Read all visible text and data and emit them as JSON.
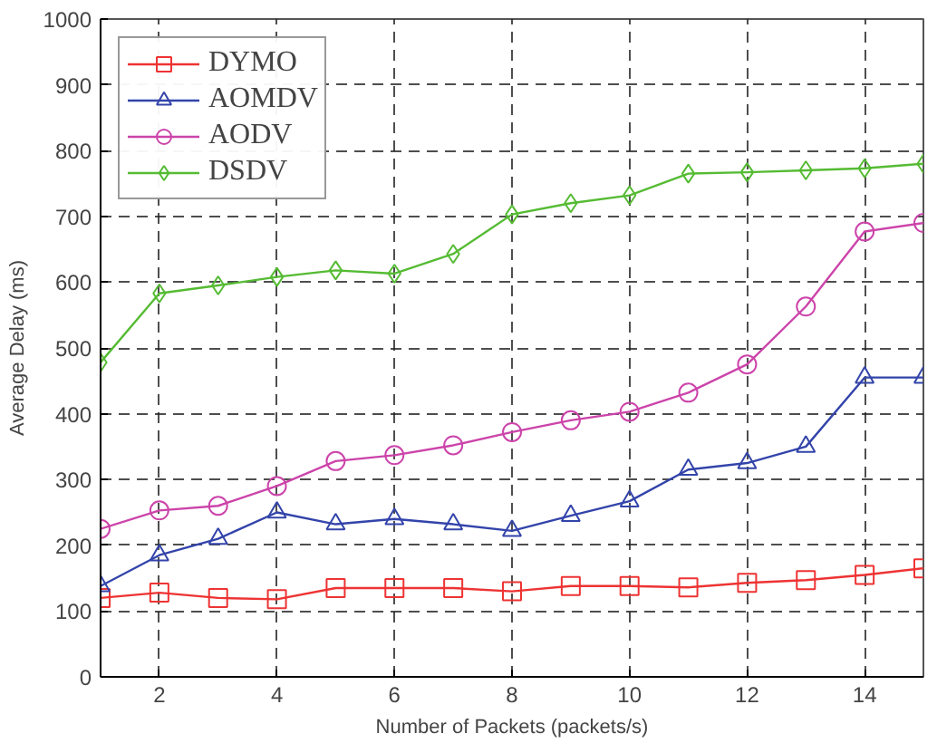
{
  "chart_data": {
    "type": "line",
    "xlabel": "Number of Packets (packets/s)",
    "ylabel": "Average Delay (ms)",
    "x": [
      1,
      2,
      3,
      4,
      5,
      6,
      7,
      8,
      9,
      10,
      11,
      12,
      13,
      14,
      15
    ],
    "series": [
      {
        "name": "DYMO",
        "color": "#ee3333",
        "marker": "square",
        "values": [
          120,
          128,
          120,
          118,
          135,
          135,
          135,
          130,
          138,
          138,
          136,
          143,
          147,
          155,
          165
        ]
      },
      {
        "name": "AOMDV",
        "color": "#3344aa",
        "marker": "triangle",
        "values": [
          138,
          185,
          210,
          250,
          232,
          240,
          232,
          222,
          245,
          267,
          315,
          325,
          350,
          455,
          455
        ]
      },
      {
        "name": "AODV",
        "color": "#cc44aa",
        "marker": "circle",
        "values": [
          225,
          253,
          260,
          290,
          328,
          337,
          352,
          372,
          390,
          403,
          432,
          475,
          563,
          677,
          690
        ]
      },
      {
        "name": "DSDV",
        "color": "#55bb33",
        "marker": "diamond",
        "values": [
          478,
          583,
          595,
          608,
          618,
          613,
          643,
          703,
          720,
          732,
          765,
          767,
          770,
          773,
          780
        ]
      }
    ],
    "xlim": [
      1,
      15
    ],
    "ylim": [
      0,
      1000
    ],
    "xticks": [
      2,
      4,
      6,
      8,
      10,
      12,
      14
    ],
    "yticks": [
      0,
      100,
      200,
      300,
      400,
      500,
      600,
      700,
      800,
      900,
      1000
    ],
    "grid": true,
    "legend": "top left",
    "line_style": "solid"
  }
}
